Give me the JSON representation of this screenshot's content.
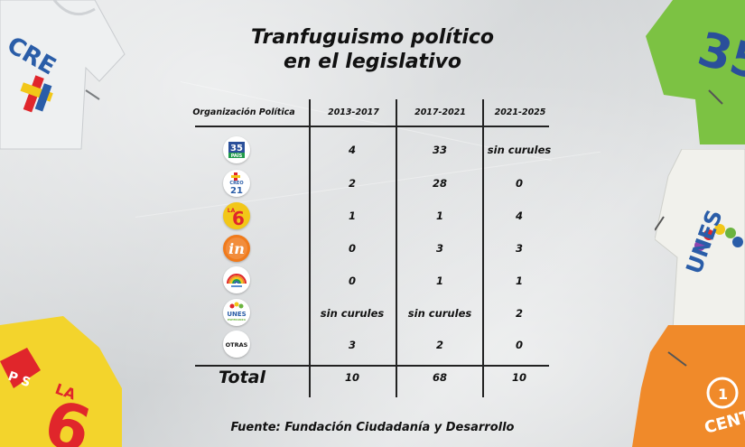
{
  "title_line1": "Tranfuguismo político",
  "title_line2": "en el legislativo",
  "source": "Fuente: Fundación Ciudadanía y Desarrollo",
  "chart_data": {
    "type": "table",
    "columns": [
      "Organización Política",
      "2013-2017",
      "2017-2021",
      "2021-2025"
    ],
    "rows": [
      {
        "party": "Alianza PAIS (35)",
        "logo_icon": "alianza-pais-logo",
        "logo_text": [
          "35",
          "PAÍS"
        ],
        "values": [
          "4",
          "33",
          "sin curules"
        ]
      },
      {
        "party": "CREO (21)",
        "logo_icon": "creo-logo",
        "logo_text": [
          "CREO",
          "21"
        ],
        "values": [
          "2",
          "28",
          "0"
        ]
      },
      {
        "party": "Partido Social Cristiano (6)",
        "logo_icon": "la-6-logo",
        "logo_text": [
          "LA",
          "6"
        ],
        "values": [
          "1",
          "1",
          "4"
        ]
      },
      {
        "party": "Izquierda Democrática",
        "logo_icon": "id-logo",
        "logo_text": [
          "in"
        ],
        "values": [
          "0",
          "3",
          "3"
        ]
      },
      {
        "party": "Pachakutik",
        "logo_icon": "rainbow-logo",
        "logo_text": [],
        "values": [
          "0",
          "1",
          "1"
        ]
      },
      {
        "party": "UNES",
        "logo_icon": "unes-logo",
        "logo_text": [
          "UNES",
          "ESPERANZA"
        ],
        "values": [
          "sin curules",
          "sin curules",
          "2"
        ]
      },
      {
        "party": "Otras",
        "logo_icon": "otras-logo",
        "logo_text": [
          "OTRAS"
        ],
        "values": [
          "3",
          "2",
          "0"
        ]
      }
    ],
    "total": {
      "label": "Total",
      "values": [
        "10",
        "68",
        "10"
      ]
    }
  },
  "colors": {
    "text": "#111111",
    "pais_green": "#1f9a4a",
    "creo_blue": "#2a5da8",
    "la6_yellow": "#f2c718",
    "la6_red": "#e0262b",
    "id_orange": "#f07a1b",
    "unes_green": "#6bb43f"
  }
}
